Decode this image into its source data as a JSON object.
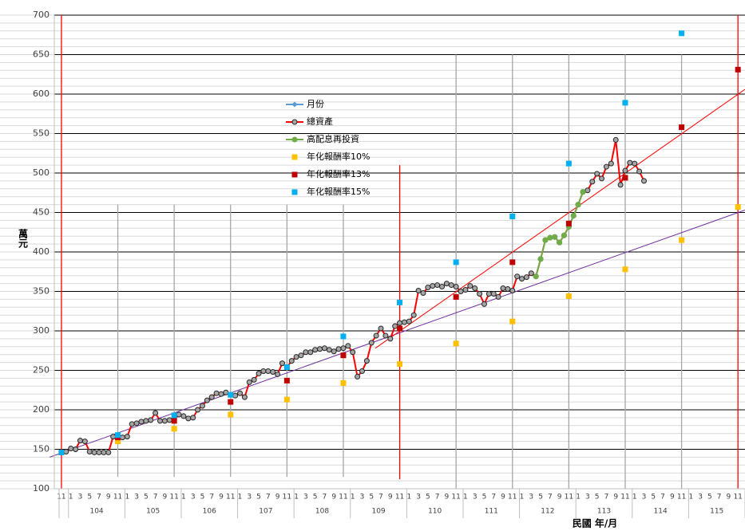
{
  "chart_data": {
    "type": "line",
    "y_title": "萬元",
    "x_title": "民國 年/月",
    "ylim": [
      100,
      700
    ],
    "yticks": [
      100,
      150,
      200,
      250,
      300,
      350,
      400,
      450,
      500,
      550,
      600,
      650,
      700
    ],
    "minor_grid_step": 10,
    "grid": true,
    "categories": [
      "11",
      null,
      "1",
      null,
      "3",
      null,
      "5",
      null,
      "7",
      null,
      "9",
      null,
      "11",
      null,
      "1",
      null,
      "3",
      null,
      "5",
      null,
      "7",
      null,
      "9",
      null,
      "11",
      null,
      "1",
      null,
      "3",
      null,
      "5",
      null,
      "7",
      null,
      "9",
      null,
      "11",
      null,
      "1",
      null,
      "3",
      null,
      "5",
      null,
      "7",
      null,
      "9",
      null,
      "11",
      null,
      "1",
      null,
      "3",
      null,
      "5",
      null,
      "7",
      null,
      "9",
      null,
      "11",
      null,
      "1",
      null,
      "3",
      null,
      "5",
      null,
      "7",
      null,
      "9",
      null,
      "11",
      null,
      "1",
      null,
      "3",
      null,
      "5",
      null,
      "7",
      null,
      "9",
      null,
      "11",
      null,
      "1",
      null,
      "3",
      null,
      "5",
      null,
      "7",
      null,
      "9",
      null,
      "11",
      null,
      "1",
      null,
      "3",
      null,
      "5",
      null,
      "7",
      null,
      "9",
      null,
      "11",
      null,
      "1",
      null,
      "3",
      null,
      "5",
      null,
      "7",
      null,
      "9",
      null,
      "11",
      null,
      "1",
      null,
      "3",
      null,
      "5",
      null,
      "7",
      null,
      "9",
      null,
      "11",
      null,
      "1",
      null,
      "3",
      null,
      "5",
      null,
      "7",
      null,
      "9",
      null,
      "11",
      null
    ],
    "year_labels": [
      "104",
      "105",
      "106",
      "107",
      "108",
      "109",
      "110",
      "111",
      "112",
      "113",
      "114",
      "115"
    ],
    "series": [
      {
        "name": "月份",
        "color": "#5b9bd5",
        "line": true,
        "marker": "diamond",
        "values": [
          null,
          null,
          null,
          null,
          null,
          null,
          null,
          null,
          null,
          null,
          null,
          null,
          null,
          null,
          null,
          null,
          null,
          null,
          null,
          null,
          null,
          null,
          null,
          null,
          null,
          null,
          null,
          null,
          null,
          null,
          null,
          null,
          null,
          null,
          null,
          null,
          null,
          null,
          null,
          null,
          null,
          null,
          null,
          null,
          null,
          null,
          null,
          null,
          null,
          null,
          null,
          null,
          null,
          null,
          null,
          null,
          null,
          null,
          null,
          null,
          null,
          null,
          null,
          null,
          null,
          null,
          null,
          null,
          null,
          null,
          null,
          null,
          null,
          null,
          null,
          null,
          null,
          null,
          null,
          null,
          null,
          null,
          null,
          null,
          null,
          null,
          null,
          null,
          null,
          null,
          null,
          null,
          null,
          null,
          null,
          null,
          null,
          null,
          null,
          null,
          null,
          null,
          null,
          null,
          null,
          null,
          null,
          null,
          null,
          null,
          null,
          null,
          null,
          null,
          null,
          null,
          null,
          null,
          null,
          null,
          null,
          null,
          null,
          null,
          null,
          null,
          null,
          null,
          null,
          null,
          null,
          null,
          null,
          null,
          null,
          null,
          null,
          null,
          null,
          null,
          null,
          null,
          null,
          null,
          null,
          null
        ]
      },
      {
        "name": "總資產",
        "color": "#ff0000",
        "marker_color": "#a6a6a6",
        "line": true,
        "marker": "circle",
        "values": [
          146,
          147,
          151,
          150,
          161,
          160,
          147,
          146,
          146,
          146,
          146,
          166,
          166,
          165,
          166,
          182,
          183,
          185,
          186,
          187,
          196,
          186,
          186,
          187,
          187,
          194,
          192,
          189,
          190,
          200,
          205,
          212,
          216,
          221,
          220,
          222,
          219,
          218,
          221,
          216,
          235,
          238,
          246,
          249,
          249,
          248,
          245,
          259,
          254,
          262,
          267,
          269,
          273,
          273,
          276,
          277,
          278,
          276,
          274,
          277,
          278,
          281,
          273,
          242,
          249,
          262,
          285,
          294,
          303,
          294,
          290,
          306,
          310,
          311,
          312,
          320,
          351,
          348,
          355,
          357,
          358,
          356,
          360,
          358,
          356,
          350,
          352,
          357,
          354,
          347,
          334,
          347,
          347,
          343,
          354,
          353,
          351,
          369,
          366,
          368,
          373,
          369,
          391,
          415,
          418,
          419,
          412,
          421,
          432,
          446,
          460,
          476,
          478,
          489,
          499,
          493,
          508,
          512,
          542,
          485,
          503,
          513,
          512,
          502,
          490,
          null,
          null,
          null,
          null,
          null,
          null,
          null,
          null,
          null,
          null,
          null,
          null,
          null,
          null,
          null,
          null,
          null,
          null,
          null,
          null,
          null
        ]
      },
      {
        "name": "高配息再投資",
        "color": "#70ad47",
        "marker_color": "#70ad47",
        "line": true,
        "marker": "circle",
        "values": [
          null,
          null,
          null,
          null,
          null,
          null,
          null,
          null,
          null,
          null,
          null,
          null,
          null,
          null,
          null,
          null,
          null,
          null,
          null,
          null,
          null,
          null,
          null,
          null,
          null,
          null,
          null,
          null,
          null,
          null,
          null,
          null,
          null,
          null,
          null,
          null,
          null,
          null,
          null,
          null,
          null,
          null,
          null,
          null,
          null,
          null,
          null,
          null,
          null,
          null,
          null,
          null,
          null,
          null,
          null,
          null,
          null,
          null,
          null,
          null,
          null,
          null,
          null,
          null,
          null,
          null,
          null,
          null,
          null,
          null,
          null,
          null,
          null,
          null,
          null,
          null,
          null,
          null,
          null,
          null,
          null,
          null,
          null,
          null,
          null,
          null,
          null,
          null,
          null,
          null,
          null,
          null,
          null,
          null,
          null,
          null,
          null,
          null,
          null,
          null,
          null,
          369,
          391,
          415,
          418,
          419,
          412,
          421,
          432,
          446,
          460,
          476,
          null,
          null,
          null,
          null,
          null,
          null,
          null,
          null,
          null,
          null,
          null,
          null,
          null,
          null,
          null,
          null,
          null,
          null,
          null,
          null,
          null,
          null,
          null,
          null,
          null,
          null,
          null,
          null,
          null,
          null,
          null,
          null,
          null,
          null
        ]
      },
      {
        "name": "年化報酬率10%",
        "color": "#ffc000",
        "line": false,
        "marker": "square",
        "values": [
          146,
          null,
          null,
          null,
          null,
          null,
          null,
          null,
          null,
          null,
          null,
          null,
          160,
          null,
          null,
          null,
          null,
          null,
          null,
          null,
          null,
          null,
          null,
          null,
          176,
          null,
          null,
          null,
          null,
          null,
          null,
          null,
          null,
          null,
          null,
          null,
          194,
          null,
          null,
          null,
          null,
          null,
          null,
          null,
          null,
          null,
          null,
          null,
          213,
          null,
          null,
          null,
          null,
          null,
          null,
          null,
          null,
          null,
          null,
          null,
          234,
          null,
          null,
          null,
          null,
          null,
          null,
          null,
          null,
          null,
          null,
          null,
          258,
          null,
          null,
          null,
          null,
          null,
          null,
          null,
          null,
          null,
          null,
          null,
          284,
          null,
          null,
          null,
          null,
          null,
          null,
          null,
          null,
          null,
          null,
          null,
          312,
          null,
          null,
          null,
          null,
          null,
          null,
          null,
          null,
          null,
          null,
          null,
          344,
          null,
          null,
          null,
          null,
          null,
          null,
          null,
          null,
          null,
          null,
          null,
          378,
          null,
          null,
          null,
          null,
          null,
          null,
          null,
          null,
          null,
          null,
          null,
          415,
          null,
          null,
          null,
          null,
          null,
          null,
          null,
          null,
          null,
          null,
          null,
          457,
          null
        ]
      },
      {
        "name": "年化報酬率13%",
        "color": "#c00000",
        "line": false,
        "marker": "square",
        "values": [
          146,
          null,
          null,
          null,
          null,
          null,
          null,
          null,
          null,
          null,
          null,
          null,
          165,
          null,
          null,
          null,
          null,
          null,
          null,
          null,
          null,
          null,
          null,
          null,
          186,
          null,
          null,
          null,
          null,
          null,
          null,
          null,
          null,
          null,
          null,
          null,
          210,
          null,
          null,
          null,
          null,
          null,
          null,
          null,
          null,
          null,
          null,
          null,
          237,
          null,
          null,
          null,
          null,
          null,
          null,
          null,
          null,
          null,
          null,
          null,
          269,
          null,
          null,
          null,
          null,
          null,
          null,
          null,
          null,
          null,
          null,
          null,
          303,
          null,
          null,
          null,
          null,
          null,
          null,
          null,
          null,
          null,
          null,
          null,
          343,
          null,
          null,
          null,
          null,
          null,
          null,
          null,
          null,
          null,
          null,
          null,
          387,
          null,
          null,
          null,
          null,
          null,
          null,
          null,
          null,
          null,
          null,
          null,
          436,
          null,
          null,
          null,
          null,
          null,
          null,
          null,
          null,
          null,
          null,
          null,
          494,
          null,
          null,
          null,
          null,
          null,
          null,
          null,
          null,
          null,
          null,
          null,
          558,
          null,
          null,
          null,
          null,
          null,
          null,
          null,
          null,
          null,
          null,
          null,
          631,
          null
        ]
      },
      {
        "name": "年化報酬率15%",
        "color": "#00b0f0",
        "line": false,
        "marker": "square",
        "values": [
          146,
          null,
          null,
          null,
          null,
          null,
          null,
          null,
          null,
          null,
          null,
          null,
          168,
          null,
          null,
          null,
          null,
          null,
          null,
          null,
          null,
          null,
          null,
          null,
          193,
          null,
          null,
          null,
          null,
          null,
          null,
          null,
          null,
          null,
          null,
          null,
          219,
          null,
          null,
          null,
          null,
          null,
          null,
          null,
          null,
          null,
          null,
          null,
          254,
          null,
          null,
          null,
          null,
          null,
          null,
          null,
          null,
          null,
          null,
          null,
          293,
          null,
          null,
          null,
          null,
          null,
          null,
          null,
          null,
          null,
          null,
          null,
          336,
          null,
          null,
          null,
          null,
          null,
          null,
          null,
          null,
          null,
          null,
          null,
          387,
          null,
          null,
          null,
          null,
          null,
          null,
          null,
          null,
          null,
          null,
          null,
          445,
          null,
          null,
          null,
          null,
          null,
          null,
          null,
          null,
          null,
          null,
          null,
          512,
          null,
          null,
          null,
          null,
          null,
          null,
          null,
          null,
          null,
          null,
          null,
          589,
          null,
          null,
          null,
          null,
          null,
          null,
          null,
          null,
          null,
          null,
          null,
          677,
          null,
          null,
          null,
          null,
          null,
          null,
          null,
          null,
          null,
          null,
          null,
          null,
          null
        ]
      }
    ],
    "year_lines": {
      "x_index": [
        0,
        12,
        24,
        36,
        48,
        60,
        72,
        84,
        96,
        108,
        120,
        132,
        144
      ],
      "top": [
        700,
        460,
        460,
        460,
        460,
        460,
        510,
        650,
        650,
        650,
        650,
        650,
        700
      ],
      "bottom": [
        100,
        115,
        115,
        115,
        115,
        115,
        112,
        100,
        100,
        100,
        100,
        100,
        100
      ],
      "colors": [
        "#ff0000",
        "#a6a6a6",
        "#a6a6a6",
        "#a6a6a6",
        "#a6a6a6",
        "#a6a6a6",
        "#ff0000",
        "#a6a6a6",
        "#a6a6a6",
        "#a6a6a6",
        "#a6a6a6",
        "#a6a6a6",
        "#ff0000"
      ]
    },
    "trendlines": [
      {
        "color": "#7030a0",
        "x_index": [
          -2.5,
          145.5
        ],
        "values": [
          140,
          453
        ]
      },
      {
        "color": "#ff0000",
        "x_index": [
          66.8,
          145.5
        ],
        "values": [
          278,
          606
        ]
      }
    ]
  }
}
